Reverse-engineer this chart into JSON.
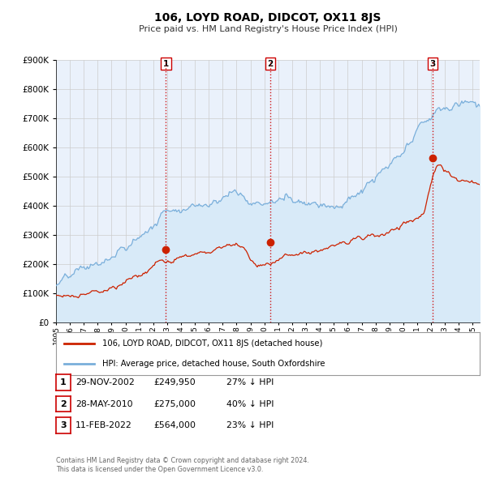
{
  "title": "106, LOYD ROAD, DIDCOT, OX11 8JS",
  "subtitle": "Price paid vs. HM Land Registry's House Price Index (HPI)",
  "legend_label_red": "106, LOYD ROAD, DIDCOT, OX11 8JS (detached house)",
  "legend_label_blue": "HPI: Average price, detached house, South Oxfordshire",
  "footer1": "Contains HM Land Registry data © Crown copyright and database right 2024.",
  "footer2": "This data is licensed under the Open Government Licence v3.0.",
  "sale_points": [
    {
      "label": "1",
      "date_str": "29-NOV-2002",
      "price": 249950,
      "hpi_pct": "27% ↓ HPI",
      "x": 2002.91
    },
    {
      "label": "2",
      "date_str": "28-MAY-2010",
      "price": 275000,
      "hpi_pct": "40% ↓ HPI",
      "x": 2010.41
    },
    {
      "label": "3",
      "date_str": "11-FEB-2022",
      "price": 564000,
      "hpi_pct": "23% ↓ HPI",
      "x": 2022.12
    }
  ],
  "vline_color": "#cc0000",
  "red_line_color": "#cc2200",
  "blue_line_color": "#7aafdb",
  "blue_fill_color": "#d8eaf8",
  "marker_color": "#cc2200",
  "sale_label_box_color": "#cc0000",
  "ylim": [
    0,
    900000
  ],
  "yticks": [
    0,
    100000,
    200000,
    300000,
    400000,
    500000,
    600000,
    700000,
    800000,
    900000
  ],
  "xmin": 1995,
  "xmax": 2025.5,
  "grid_color": "#cccccc",
  "plot_area_bg": "#eaf1fb"
}
